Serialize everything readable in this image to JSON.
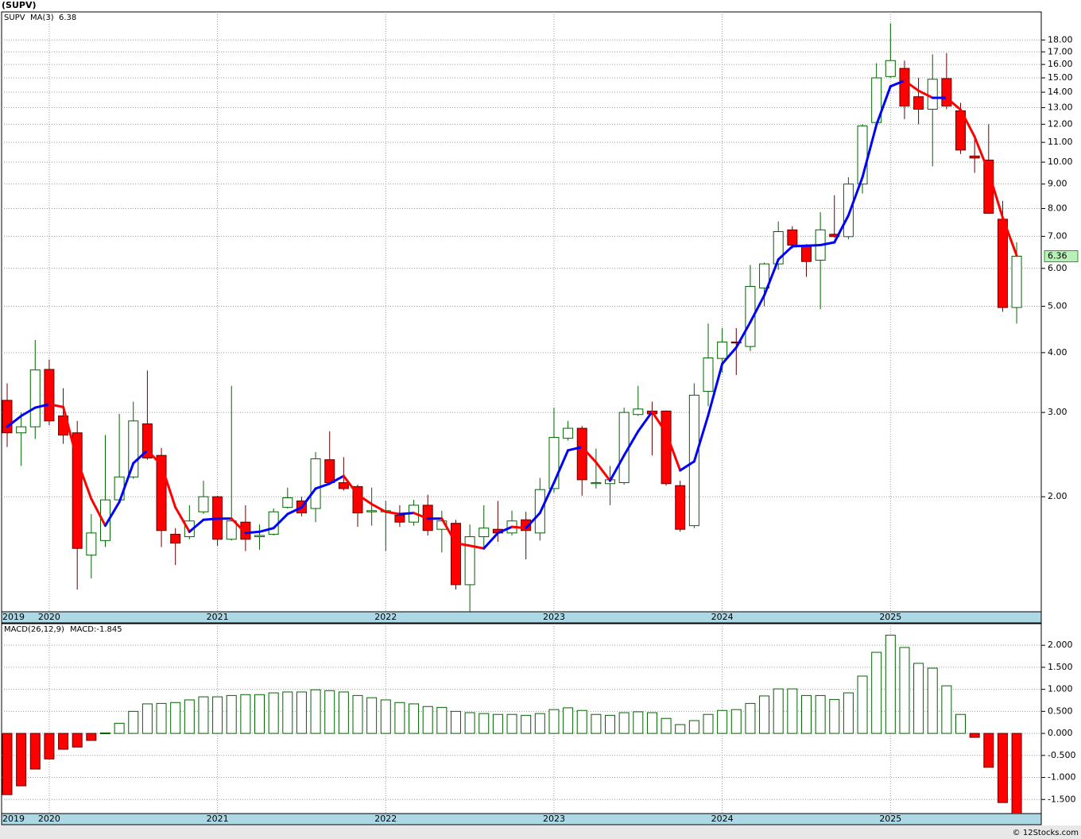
{
  "chart_data": [
    {
      "type": "candlestick",
      "title": "(SUPV)",
      "symbol": "SUPV",
      "log_scale": true,
      "grid": true,
      "up_color": "#006400",
      "down_color": "#ff0000",
      "symbol_color": "#008000",
      "categories": [
        "2019",
        null,
        null,
        "2020",
        null,
        null,
        null,
        null,
        null,
        null,
        null,
        null,
        null,
        null,
        null,
        "2021",
        null,
        null,
        null,
        null,
        null,
        null,
        null,
        null,
        null,
        null,
        null,
        "2022",
        null,
        null,
        null,
        null,
        null,
        null,
        null,
        null,
        null,
        null,
        null,
        "2023",
        null,
        null,
        null,
        null,
        null,
        null,
        null,
        null,
        null,
        null,
        null,
        "2024",
        null,
        null,
        null,
        null,
        null,
        null,
        null,
        null,
        null,
        null,
        null,
        "2025",
        null,
        null,
        null,
        null,
        null,
        null,
        null,
        null,
        null
      ],
      "open": [
        3.18,
        2.72,
        2.8,
        3.69,
        2.95,
        2.72,
        1.51,
        1.62,
        1.97,
        2.2,
        2.84,
        2.44,
        1.67,
        1.65,
        1.86,
        2.0,
        1.63,
        1.77,
        1.65,
        1.67,
        1.9,
        1.96,
        1.89,
        2.39,
        2.14,
        2.1,
        1.86,
        1.86,
        1.83,
        1.77,
        1.92,
        1.71,
        1.76,
        1.31,
        1.65,
        1.71,
        1.68,
        1.79,
        1.68,
        2.08,
        2.65,
        2.78,
        2.13,
        2.13,
        2.14,
        2.97,
        3.02,
        3.02,
        2.11,
        1.74,
        3.32,
        3.89,
        4.21,
        4.12,
        5.46,
        6.13,
        7.22,
        6.71,
        6.24,
        7.07,
        6.99,
        9.0,
        12.1,
        15.1,
        15.7,
        13.7,
        12.9,
        14.95,
        12.8,
        10.3,
        10.1,
        7.6,
        4.97
      ],
      "high": [
        3.45,
        3.0,
        4.25,
        3.87,
        3.37,
        2.88,
        1.84,
        2.69,
        2.98,
        3.16,
        3.67,
        2.53,
        1.72,
        1.92,
        2.16,
        2.01,
        3.41,
        1.92,
        1.75,
        1.89,
        2.09,
        2.0,
        2.48,
        2.74,
        2.42,
        2.12,
        2.09,
        1.96,
        1.92,
        1.97,
        2.02,
        1.87,
        1.79,
        1.75,
        1.92,
        1.96,
        1.87,
        1.86,
        2.19,
        3.07,
        2.88,
        2.81,
        2.52,
        2.32,
        3.07,
        3.41,
        3.16,
        3.03,
        2.16,
        3.45,
        4.6,
        4.5,
        4.5,
        6.1,
        6.17,
        7.52,
        7.35,
        6.74,
        7.86,
        8.53,
        9.3,
        12.0,
        16.1,
        19.5,
        16.3,
        15.0,
        16.8,
        16.9,
        13.3,
        11.4,
        12.0,
        8.3,
        6.8
      ],
      "low": [
        2.54,
        2.32,
        2.64,
        2.82,
        2.58,
        1.28,
        1.35,
        1.57,
        1.95,
        2.18,
        2.39,
        1.57,
        1.44,
        1.63,
        1.84,
        1.58,
        1.62,
        1.54,
        1.55,
        1.66,
        1.89,
        1.82,
        1.77,
        2.12,
        2.06,
        1.73,
        1.74,
        1.54,
        1.73,
        1.74,
        1.66,
        1.53,
        1.28,
        1.15,
        1.57,
        1.61,
        1.66,
        1.48,
        1.62,
        2.04,
        2.62,
        2.01,
        2.08,
        1.92,
        2.12,
        2.95,
        2.44,
        2.11,
        1.69,
        1.72,
        3.09,
        3.63,
        3.59,
        4.03,
        5.0,
        5.96,
        6.6,
        5.76,
        4.93,
        6.95,
        6.9,
        8.6,
        12.0,
        15.0,
        12.3,
        12.0,
        9.8,
        12.9,
        10.4,
        9.5,
        7.8,
        4.87,
        4.6
      ],
      "close": [
        2.72,
        2.8,
        3.68,
        2.88,
        2.69,
        1.56,
        1.68,
        1.97,
        2.2,
        2.88,
        2.41,
        1.7,
        1.6,
        1.78,
        2.0,
        1.63,
        1.78,
        1.63,
        1.66,
        1.86,
        1.99,
        1.85,
        2.4,
        2.14,
        2.08,
        1.85,
        1.87,
        1.87,
        1.77,
        1.92,
        1.7,
        1.78,
        1.31,
        1.65,
        1.72,
        1.68,
        1.78,
        1.7,
        2.07,
        2.66,
        2.78,
        2.17,
        2.14,
        2.17,
        3.0,
        3.05,
        2.98,
        2.13,
        1.71,
        3.26,
        3.9,
        4.21,
        4.19,
        5.5,
        6.13,
        7.16,
        6.71,
        6.2,
        7.22,
        6.99,
        9.0,
        11.9,
        15.0,
        16.3,
        13.1,
        12.9,
        14.9,
        13.1,
        10.6,
        10.2,
        7.82,
        4.97,
        6.36
      ],
      "ma": {
        "name": "MA(3)",
        "up_color": "#0000ff",
        "down_color": "#ff0000",
        "values": [
          2.8,
          2.95,
          3.07,
          3.12,
          3.08,
          2.38,
          1.98,
          1.74,
          1.95,
          2.35,
          2.5,
          2.33,
          1.9,
          1.69,
          1.79,
          1.8,
          1.8,
          1.68,
          1.69,
          1.72,
          1.84,
          1.9,
          2.08,
          2.13,
          2.21,
          2.02,
          1.93,
          1.86,
          1.84,
          1.85,
          1.8,
          1.8,
          1.6,
          1.58,
          1.56,
          1.68,
          1.73,
          1.72,
          1.85,
          2.14,
          2.5,
          2.54,
          2.36,
          2.16,
          2.44,
          2.74,
          3.01,
          2.72,
          2.27,
          2.37,
          2.96,
          3.79,
          4.1,
          4.63,
          5.27,
          6.26,
          6.67,
          6.69,
          6.71,
          6.8,
          7.74,
          9.3,
          11.97,
          14.4,
          14.8,
          14.1,
          13.63,
          13.63,
          12.87,
          11.3,
          9.54,
          7.66,
          6.38
        ]
      },
      "ylim": [
        1.15,
        20.6
      ],
      "yticks": [
        {
          "value": 2,
          "label": "2.00"
        },
        {
          "value": 3,
          "label": "3.00"
        },
        {
          "value": 4,
          "label": "4.00"
        },
        {
          "value": 5,
          "label": "5.00"
        },
        {
          "value": 6,
          "label": "6.00"
        },
        {
          "value": 7,
          "label": "7.00"
        },
        {
          "value": 8,
          "label": "8.00"
        },
        {
          "value": 9,
          "label": "9.00"
        },
        {
          "value": 10,
          "label": "10.00"
        },
        {
          "value": 11,
          "label": "11.00"
        },
        {
          "value": 12,
          "label": "12.00"
        },
        {
          "value": 13,
          "label": "13.00"
        },
        {
          "value": 14,
          "label": "14.00"
        },
        {
          "value": 15,
          "label": "15.00"
        },
        {
          "value": 16,
          "label": "16.00"
        },
        {
          "value": 17,
          "label": "17.00"
        },
        {
          "value": 18,
          "label": "18.00"
        }
      ]
    },
    {
      "type": "bar",
      "title": "MACD(26,12,9)",
      "value_label": "MACD:-1.845",
      "grid": true,
      "positive_color": "#006400",
      "negative_color": "#ff0000",
      "values": [
        -1.39,
        -1.19,
        -0.81,
        -0.58,
        -0.36,
        -0.31,
        -0.16,
        0.01,
        0.23,
        0.5,
        0.67,
        0.68,
        0.7,
        0.76,
        0.83,
        0.83,
        0.86,
        0.88,
        0.88,
        0.92,
        0.94,
        0.94,
        0.99,
        0.97,
        0.94,
        0.86,
        0.81,
        0.76,
        0.7,
        0.67,
        0.61,
        0.59,
        0.5,
        0.47,
        0.45,
        0.43,
        0.43,
        0.41,
        0.45,
        0.54,
        0.58,
        0.52,
        0.43,
        0.41,
        0.47,
        0.49,
        0.47,
        0.34,
        0.2,
        0.29,
        0.43,
        0.52,
        0.54,
        0.68,
        0.85,
        1.01,
        1.01,
        0.86,
        0.86,
        0.77,
        0.92,
        1.3,
        1.84,
        2.23,
        1.95,
        1.59,
        1.48,
        1.08,
        0.43,
        -0.09,
        -0.77,
        -1.57,
        -1.845
      ],
      "ylim": [
        -1.82,
        2.49
      ],
      "yticks": [
        {
          "value": -1.5,
          "label": "-1.500"
        },
        {
          "value": -1,
          "label": "-1.000"
        },
        {
          "value": -0.5,
          "label": "-0.500"
        },
        {
          "value": 0,
          "label": "0.000"
        },
        {
          "value": 0.5,
          "label": "0.500"
        },
        {
          "value": 1,
          "label": "1.000"
        },
        {
          "value": 1.5,
          "label": "1.500"
        },
        {
          "value": 2,
          "label": "2.000"
        }
      ]
    }
  ],
  "footer": "© 12Stocks.com"
}
